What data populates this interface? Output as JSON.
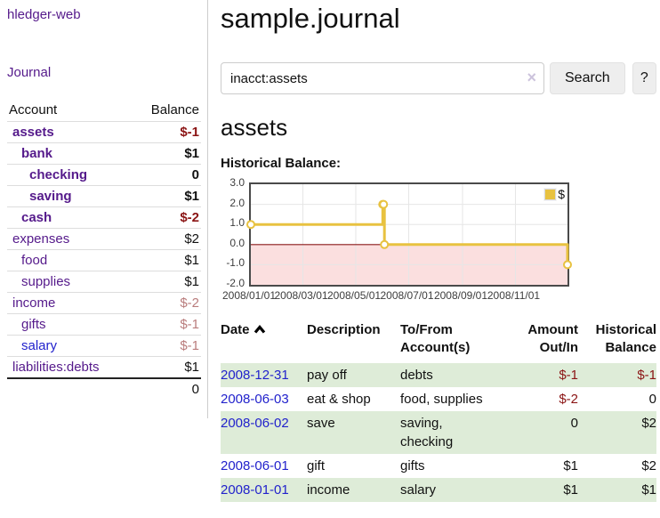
{
  "sidebar": {
    "brand": "hledger-web",
    "nav_journal": "Journal",
    "accounts": {
      "header_account": "Account",
      "header_balance": "Balance",
      "rows": [
        {
          "name": "assets",
          "balance": "$-1",
          "indent": 1,
          "matched": true,
          "name_color": "purple",
          "balance_color": "negative"
        },
        {
          "name": "bank",
          "balance": "$1",
          "indent": 2,
          "matched": true,
          "name_color": "purple",
          "balance_color": "normal"
        },
        {
          "name": "checking",
          "balance": "0",
          "indent": 3,
          "matched": true,
          "name_color": "purple",
          "balance_color": "normal"
        },
        {
          "name": "saving",
          "balance": "$1",
          "indent": 3,
          "matched": true,
          "name_color": "purple",
          "balance_color": "normal"
        },
        {
          "name": "cash",
          "balance": "$-2",
          "indent": 2,
          "matched": true,
          "name_color": "purple",
          "balance_color": "negative"
        },
        {
          "name": "expenses",
          "balance": "$2",
          "indent": 1,
          "matched": false,
          "name_color": "purple",
          "balance_color": "normal"
        },
        {
          "name": "food",
          "balance": "$1",
          "indent": 2,
          "matched": false,
          "name_color": "purple",
          "balance_color": "normal"
        },
        {
          "name": "supplies",
          "balance": "$1",
          "indent": 2,
          "matched": false,
          "name_color": "purple",
          "balance_color": "normal"
        },
        {
          "name": "income",
          "balance": "$-2",
          "indent": 1,
          "matched": false,
          "name_color": "purple",
          "balance_color": "negative-faded"
        },
        {
          "name": "gifts",
          "balance": "$-1",
          "indent": 2,
          "matched": false,
          "name_color": "purple",
          "balance_color": "negative-faded"
        },
        {
          "name": "salary",
          "balance": "$-1",
          "indent": 2,
          "matched": false,
          "name_color": "blue",
          "balance_color": "negative-faded"
        },
        {
          "name": "liabilities:debts",
          "balance": "$1",
          "indent": 1,
          "matched": false,
          "name_color": "purple",
          "balance_color": "normal"
        }
      ],
      "total": "0"
    }
  },
  "main": {
    "title": "sample.journal",
    "search": {
      "query": "inacct:assets",
      "clear_icon": "×",
      "button_label": "Search",
      "help_label": "?"
    },
    "account_heading": "assets"
  },
  "chart_data": {
    "type": "line",
    "step": true,
    "title": "Historical Balance:",
    "series": [
      {
        "name": "$",
        "color": "#E8C240",
        "points": [
          [
            "2008-01-01",
            1
          ],
          [
            "2008-06-01",
            2
          ],
          [
            "2008-06-02",
            2
          ],
          [
            "2008-06-03",
            0
          ],
          [
            "2008-12-31",
            -1
          ]
        ]
      }
    ],
    "x_range": [
      "2008-01-01",
      "2008-12-31"
    ],
    "ylim": [
      -2.0,
      3.0
    ],
    "ytick_labels": [
      "3.0",
      "2.0",
      "1.0",
      "0.0",
      "-1.0",
      "-2.0"
    ],
    "ytick_values": [
      3,
      2,
      1,
      0,
      -1,
      -2
    ],
    "xtick_labels": [
      "2008/01/01",
      "2008/03/01",
      "2008/05/01",
      "2008/07/01",
      "2008/09/01",
      "2008/11/01"
    ],
    "xtick_dates": [
      "2008-01-01",
      "2008-03-01",
      "2008-05-01",
      "2008-07-01",
      "2008-09-01",
      "2008-11-01"
    ],
    "legend": {
      "label": "$",
      "position": "top-right"
    },
    "grid": true
  },
  "register": {
    "headers": {
      "date": "Date",
      "description": "Description",
      "accounts": "To/From Account(s)",
      "amount": "Amount Out/In",
      "balance": "Historical Balance"
    },
    "sort": {
      "column": "date",
      "direction": "ascending"
    },
    "rows": [
      {
        "date": "2008-12-31",
        "description": "pay off",
        "accounts": "debts",
        "amount": "$-1",
        "amount_negative": true,
        "balance": "$-1",
        "balance_negative": true,
        "shaded": true
      },
      {
        "date": "2008-06-03",
        "description": "eat & shop",
        "accounts": "food, supplies",
        "amount": "$-2",
        "amount_negative": true,
        "balance": "0",
        "balance_negative": false,
        "shaded": false
      },
      {
        "date": "2008-06-02",
        "description": "save",
        "accounts": "saving, checking",
        "amount": "0",
        "amount_negative": false,
        "balance": "$2",
        "balance_negative": false,
        "shaded": true
      },
      {
        "date": "2008-06-01",
        "description": "gift",
        "accounts": "gifts",
        "amount": "$1",
        "amount_negative": false,
        "balance": "$2",
        "balance_negative": false,
        "shaded": false
      },
      {
        "date": "2008-01-01",
        "description": "income",
        "accounts": "salary",
        "amount": "$1",
        "amount_negative": false,
        "balance": "$1",
        "balance_negative": false,
        "shaded": true
      }
    ]
  },
  "colors": {
    "link_purple": "#551A8B",
    "link_blue": "#2222CC",
    "negative": "#8B1414",
    "negative_faded": "#B97C7C",
    "row_green": "#DEECD8",
    "chart_line": "#E8C240",
    "chart_negative_fill": "#FBDFDF",
    "chart_zero_line": "#8B1A1A",
    "plot_border": "#4A4A4A",
    "gridline": "#E6E6E6"
  }
}
